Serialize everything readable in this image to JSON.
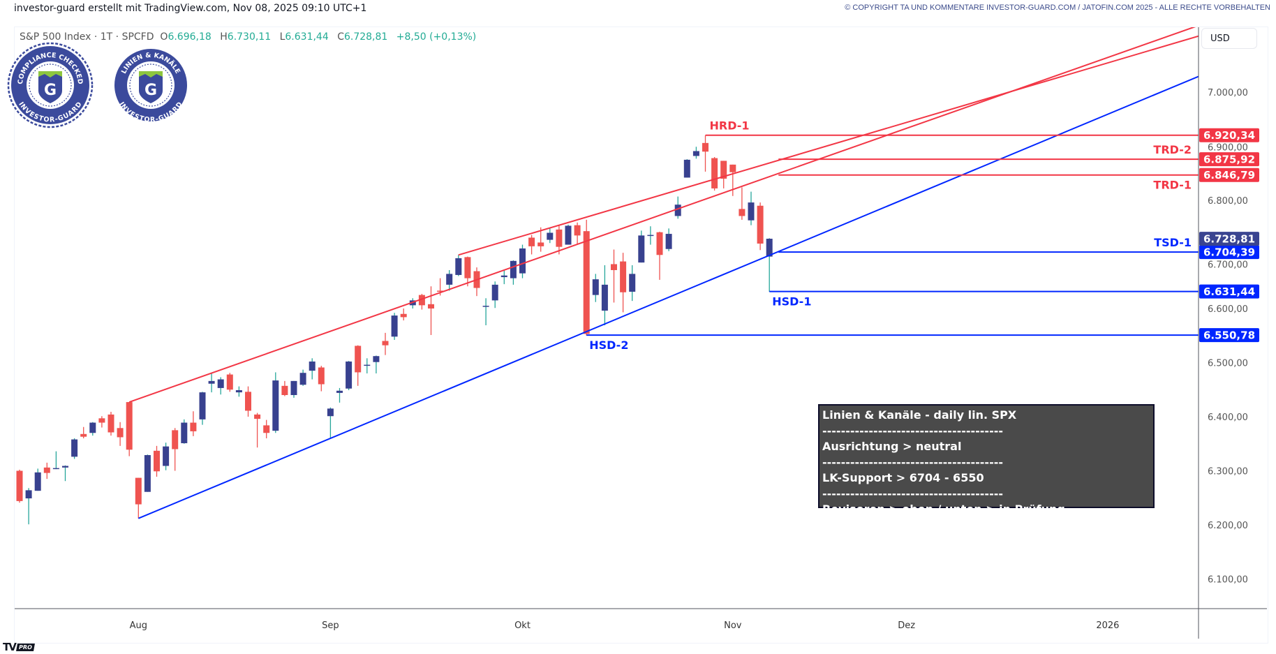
{
  "header": {
    "title": "investor-guard erstellt mit TradingView.com, Nov 08, 2025 09:10 UTC+1",
    "copyright": "© COPYRIGHT TA UND KOMMENTARE INVESTOR-GUARD.COM / JATOFIN.COM 2025 - ALLE RECHTE VORBEHALTEN"
  },
  "legend": {
    "symbol": "S&P 500 Index · 1T · SPCFD",
    "o_label": "O",
    "o": "6.696,18",
    "h_label": "H",
    "h": "6.730,11",
    "l_label": "L",
    "l": "6.631,44",
    "c_label": "C",
    "c": "6.728,81",
    "change": "+8,50 (+0,13%)"
  },
  "badges": {
    "badge1": {
      "top": "COMPLIANCE CHECKED",
      "bottom": "INVESTOR-GUARD",
      "letter": "G"
    },
    "badge2": {
      "top": "LINIEN & KANÄLE",
      "bottom": "INVESTOR-GUARD",
      "letter": "G"
    }
  },
  "currency": "USD",
  "infobox": {
    "lines": [
      "Linien & Kanäle - daily lin. SPX",
      "---------------------------------------",
      "Ausrichtung > neutral",
      "---------------------------------------",
      "LK-Support > 6704 - 6550",
      "---------------------------------------",
      "Revisoren > oben / unten > in Prüfung"
    ]
  },
  "logo": {
    "text": "TV",
    "badge": "PRO"
  },
  "colors": {
    "up_body": "#38418f",
    "up_wick": "#26a69a",
    "down_body": "#ef5350",
    "down_wick": "#ef5350",
    "resistance": "#f23645",
    "support": "#0026ff",
    "last_price": "#3a4490",
    "axis_text": "#555555"
  },
  "chart_data": {
    "type": "candlestick",
    "ylim": [
      6040,
      7100
    ],
    "y_ticks": [
      6100,
      6200,
      6300,
      6400,
      6500,
      6600,
      6700,
      6800,
      6900,
      7000
    ],
    "y_tick_labels": [
      "6.100,00",
      "6.200,00",
      "6.300,00",
      "6.400,00",
      "6.500,00",
      "6.600,00",
      "6.700,00",
      "6.800,00",
      "6.900,00",
      "7.000,00"
    ],
    "x_ticks": [
      {
        "label": "Aug",
        "date": "2025-08-01"
      },
      {
        "label": "Sep",
        "date": "2025-09-02"
      },
      {
        "label": "Okt",
        "date": "2025-10-01"
      },
      {
        "label": "Nov",
        "date": "2025-11-03"
      },
      {
        "label": "Dez",
        "date": "2025-12-01"
      },
      {
        "label": "2026",
        "date": "2026-01-02"
      }
    ],
    "candles_columns": [
      "date",
      "open",
      "high",
      "low",
      "close"
    ],
    "candles": [
      [
        "2025-07-15",
        6300,
        6302,
        6241,
        6244
      ],
      [
        "2025-07-16",
        6249,
        6268,
        6201,
        6264
      ],
      [
        "2025-07-17",
        6263,
        6304,
        6263,
        6297
      ],
      [
        "2025-07-18",
        6306,
        6315,
        6285,
        6296
      ],
      [
        "2025-07-21",
        6304,
        6336,
        6303,
        6305
      ],
      [
        "2025-07-22",
        6306,
        6310,
        6281,
        6309
      ],
      [
        "2025-07-23",
        6326,
        6360,
        6322,
        6358
      ],
      [
        "2025-07-24",
        6368,
        6381,
        6360,
        6363
      ],
      [
        "2025-07-25",
        6370,
        6390,
        6365,
        6389
      ],
      [
        "2025-07-28",
        6397,
        6401,
        6380,
        6389
      ],
      [
        "2025-07-29",
        6404,
        6409,
        6365,
        6371
      ],
      [
        "2025-07-30",
        6379,
        6390,
        6346,
        6362
      ],
      [
        "2025-07-31",
        6427,
        6427,
        6327,
        6339
      ],
      [
        "2025-08-01",
        6287,
        6287,
        6212,
        6238
      ],
      [
        "2025-08-04",
        6261,
        6330,
        6261,
        6329
      ],
      [
        "2025-08-05",
        6337,
        6346,
        6289,
        6299
      ],
      [
        "2025-08-06",
        6309,
        6352,
        6301,
        6345
      ],
      [
        "2025-08-07",
        6375,
        6379,
        6300,
        6340
      ],
      [
        "2025-08-08",
        6351,
        6395,
        6350,
        6389
      ],
      [
        "2025-08-11",
        6389,
        6410,
        6364,
        6373
      ],
      [
        "2025-08-12",
        6395,
        6446,
        6385,
        6445
      ],
      [
        "2025-08-13",
        6461,
        6481,
        6445,
        6466
      ],
      [
        "2025-08-14",
        6453,
        6473,
        6441,
        6469
      ],
      [
        "2025-08-15",
        6478,
        6481,
        6446,
        6450
      ],
      [
        "2025-08-18",
        6445,
        6456,
        6437,
        6449
      ],
      [
        "2025-08-19",
        6446,
        6456,
        6400,
        6411
      ],
      [
        "2025-08-20",
        6404,
        6407,
        6343,
        6396
      ],
      [
        "2025-08-21",
        6384,
        6394,
        6360,
        6370
      ],
      [
        "2025-08-22",
        6374,
        6482,
        6370,
        6467
      ],
      [
        "2025-08-25",
        6457,
        6466,
        6438,
        6440
      ],
      [
        "2025-08-26",
        6440,
        6466,
        6435,
        6466
      ],
      [
        "2025-08-27",
        6459,
        6487,
        6457,
        6481
      ],
      [
        "2025-08-28",
        6485,
        6508,
        6469,
        6502
      ],
      [
        "2025-08-29",
        6491,
        6494,
        6447,
        6460
      ],
      [
        "2025-09-02",
        6401,
        6417,
        6360,
        6415
      ],
      [
        "2025-09-03",
        6444,
        6453,
        6426,
        6448
      ],
      [
        "2025-09-04",
        6452,
        6503,
        6449,
        6502
      ],
      [
        "2025-09-05",
        6531,
        6532,
        6457,
        6482
      ],
      [
        "2025-09-08",
        6495,
        6508,
        6480,
        6496
      ],
      [
        "2025-09-09",
        6501,
        6513,
        6480,
        6512
      ],
      [
        "2025-09-10",
        6540,
        6555,
        6514,
        6532
      ],
      [
        "2025-09-11",
        6548,
        6592,
        6542,
        6587
      ],
      [
        "2025-09-12",
        6590,
        6600,
        6578,
        6584
      ],
      [
        "2025-09-15",
        6606,
        6619,
        6600,
        6615
      ],
      [
        "2025-09-16",
        6625,
        6627,
        6598,
        6606
      ],
      [
        "2025-09-17",
        6608,
        6641,
        6551,
        6600
      ],
      [
        "2025-09-18",
        6633,
        6656,
        6624,
        6631
      ],
      [
        "2025-09-19",
        6644,
        6671,
        6633,
        6664
      ],
      [
        "2025-09-22",
        6662,
        6699,
        6660,
        6693
      ],
      [
        "2025-09-23",
        6695,
        6696,
        6641,
        6656
      ],
      [
        "2025-09-24",
        6669,
        6676,
        6623,
        6638
      ],
      [
        "2025-09-25",
        6605,
        6619,
        6569,
        6605
      ],
      [
        "2025-09-26",
        6615,
        6650,
        6601,
        6644
      ],
      [
        "2025-09-29",
        6658,
        6671,
        6645,
        6661
      ],
      [
        "2025-09-30",
        6656,
        6689,
        6644,
        6688
      ],
      [
        "2025-10-01",
        6665,
        6718,
        6656,
        6711
      ],
      [
        "2025-10-02",
        6731,
        6736,
        6700,
        6715
      ],
      [
        "2025-10-03",
        6722,
        6750,
        6705,
        6715
      ],
      [
        "2025-10-06",
        6727,
        6749,
        6721,
        6740
      ],
      [
        "2025-10-07",
        6746,
        6753,
        6700,
        6714
      ],
      [
        "2025-10-08",
        6718,
        6755,
        6718,
        6753
      ],
      [
        "2025-10-09",
        6754,
        6759,
        6719,
        6735
      ],
      [
        "2025-10-10",
        6743,
        6764,
        6550,
        6553
      ],
      [
        "2025-10-13",
        6625,
        6664,
        6612,
        6654
      ],
      [
        "2025-10-14",
        6596,
        6680,
        6569,
        6644
      ],
      [
        "2025-10-15",
        6682,
        6709,
        6611,
        6671
      ],
      [
        "2025-10-16",
        6687,
        6703,
        6593,
        6630
      ],
      [
        "2025-10-17",
        6631,
        6680,
        6614,
        6664
      ],
      [
        "2025-10-20",
        6685,
        6744,
        6685,
        6735
      ],
      [
        "2025-10-21",
        6736,
        6752,
        6718,
        6736
      ],
      [
        "2025-10-22",
        6741,
        6742,
        6653,
        6699
      ],
      [
        "2025-10-23",
        6710,
        6748,
        6706,
        6738
      ],
      [
        "2025-10-24",
        6771,
        6807,
        6766,
        6792
      ],
      [
        "2025-10-27",
        6842,
        6876,
        6842,
        6875
      ],
      [
        "2025-10-28",
        6882,
        6899,
        6877,
        6891
      ],
      [
        "2025-10-29",
        6906,
        6920,
        6853,
        6890
      ],
      [
        "2025-10-30",
        6878,
        6880,
        6818,
        6822
      ],
      [
        "2025-10-31",
        6873,
        6873,
        6822,
        6840
      ],
      [
        "2025-11-03",
        6866,
        6866,
        6808,
        6852
      ],
      [
        "2025-11-04",
        6784,
        6824,
        6764,
        6771
      ],
      [
        "2025-11-05",
        6763,
        6816,
        6754,
        6796
      ],
      [
        "2025-11-06",
        6790,
        6796,
        6708,
        6720
      ],
      [
        "2025-11-07",
        6696,
        6730,
        6631,
        6729
      ]
    ],
    "trendlines": [
      {
        "role": "resistance",
        "from": [
          "2025-09-22",
          6699
        ],
        "to": [
          "2025-10-22",
          6809
        ],
        "extend": "right"
      },
      {
        "role": "resistance",
        "from": [
          "2025-07-31",
          6427
        ],
        "to": [
          "2025-10-01",
          6683
        ],
        "extend": "right"
      },
      {
        "role": "support",
        "from": [
          "2025-08-01",
          6212
        ],
        "to": [
          "2025-10-01",
          6508
        ],
        "extend": "right"
      }
    ],
    "levels": [
      {
        "name": "HRD-1",
        "price": 6920.34,
        "label": "6.920,34",
        "from": "2025-10-29",
        "role": "resistance",
        "name_pos": "above-left"
      },
      {
        "name": "TRD-2",
        "price": 6875.92,
        "label": "6.875,92",
        "from": "2025-11-10",
        "role": "resistance",
        "name_pos": "above-right"
      },
      {
        "name": "TRD-1",
        "price": 6846.79,
        "label": "6.846,79",
        "from": "2025-11-10",
        "role": "resistance",
        "name_pos": "below-right"
      },
      {
        "name": "TSD-1",
        "price": 6704.39,
        "label": "6.704,39",
        "from": "2025-11-10",
        "role": "support",
        "name_pos": "above-right"
      },
      {
        "name": "HSD-1",
        "price": 6631.44,
        "label": "6.631,44",
        "from": "2025-11-07",
        "role": "support",
        "name_pos": "below-left"
      },
      {
        "name": "HSD-2",
        "price": 6550.78,
        "label": "6.550,78",
        "from": "2025-10-10",
        "role": "support",
        "name_pos": "below-left"
      }
    ],
    "last_price": {
      "price": 6728.81,
      "label": "6.728,81"
    }
  }
}
